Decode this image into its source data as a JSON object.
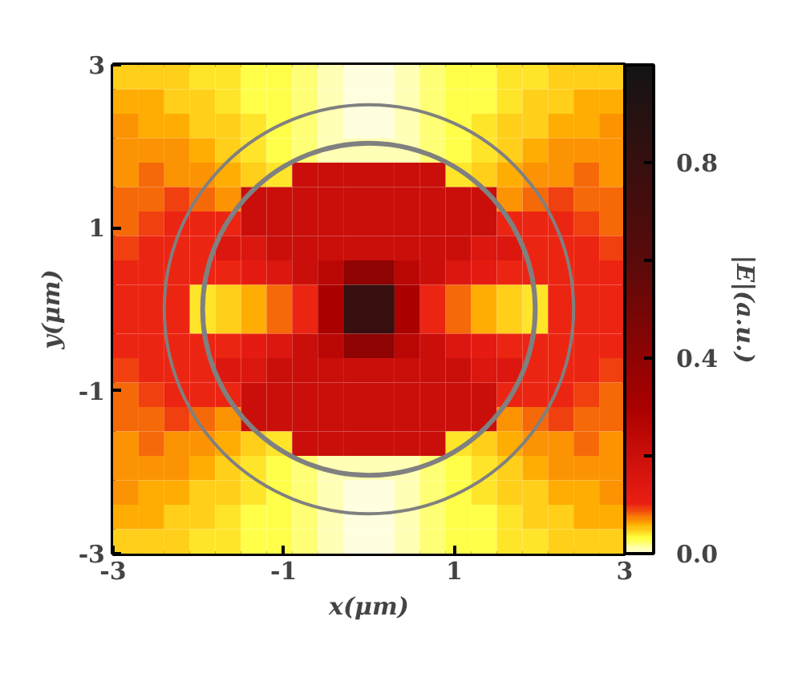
{
  "chart_data": {
    "type": "heatmap",
    "xlabel": "x(μm)",
    "ylabel": "y(μm)",
    "clabel": "|E|(a.u.)",
    "x": [
      -2.85,
      -2.55,
      -2.25,
      -1.95,
      -1.65,
      -1.35,
      -1.05,
      -0.75,
      -0.45,
      -0.15,
      0.15,
      0.45,
      0.75,
      1.05,
      1.35,
      1.65,
      1.95,
      2.25,
      2.55,
      2.85
    ],
    "y": [
      2.85,
      2.55,
      2.25,
      1.95,
      1.65,
      1.35,
      1.05,
      0.75,
      0.45,
      0.15,
      -0.15,
      -0.45,
      -0.75,
      -1.05,
      -1.35,
      -1.65,
      -1.95,
      -2.25,
      -2.55,
      -2.85
    ],
    "cells": [
      [
        0.05,
        0.05,
        0.05,
        0.04,
        0.04,
        0.03,
        0.03,
        0.02,
        0.01,
        0.0,
        0.0,
        0.01,
        0.02,
        0.03,
        0.03,
        0.04,
        0.04,
        0.05,
        0.05,
        0.05
      ],
      [
        0.06,
        0.06,
        0.05,
        0.05,
        0.04,
        0.03,
        0.03,
        0.02,
        0.01,
        0.0,
        0.0,
        0.01,
        0.02,
        0.03,
        0.03,
        0.04,
        0.05,
        0.05,
        0.06,
        0.06
      ],
      [
        0.07,
        0.06,
        0.06,
        0.05,
        0.05,
        0.04,
        0.03,
        0.02,
        0.01,
        0.0,
        0.0,
        0.01,
        0.02,
        0.03,
        0.04,
        0.05,
        0.05,
        0.06,
        0.06,
        0.07
      ],
      [
        0.07,
        0.07,
        0.07,
        0.06,
        0.05,
        0.04,
        0.03,
        0.02,
        0.01,
        0.01,
        0.01,
        0.01,
        0.02,
        0.03,
        0.04,
        0.05,
        0.06,
        0.07,
        0.07,
        0.07
      ],
      [
        0.07,
        0.08,
        0.07,
        0.07,
        0.06,
        0.05,
        0.04,
        0.2,
        0.2,
        0.2,
        0.2,
        0.2,
        0.2,
        0.04,
        0.05,
        0.06,
        0.07,
        0.07,
        0.08,
        0.07
      ],
      [
        0.08,
        0.08,
        0.09,
        0.08,
        0.07,
        0.2,
        0.2,
        0.2,
        0.2,
        0.2,
        0.2,
        0.2,
        0.2,
        0.2,
        0.2,
        0.07,
        0.08,
        0.09,
        0.08,
        0.08
      ],
      [
        0.08,
        0.09,
        0.1,
        0.1,
        0.1,
        0.2,
        0.2,
        0.2,
        0.2,
        0.2,
        0.2,
        0.2,
        0.2,
        0.2,
        0.2,
        0.1,
        0.1,
        0.1,
        0.09,
        0.08
      ],
      [
        0.09,
        0.1,
        0.1,
        0.1,
        0.15,
        0.15,
        0.2,
        0.2,
        0.2,
        0.2,
        0.2,
        0.2,
        0.2,
        0.2,
        0.15,
        0.15,
        0.1,
        0.1,
        0.1,
        0.09
      ],
      [
        0.1,
        0.1,
        0.1,
        0.1,
        0.1,
        0.12,
        0.15,
        0.2,
        0.25,
        0.4,
        0.4,
        0.25,
        0.2,
        0.15,
        0.12,
        0.1,
        0.1,
        0.1,
        0.1,
        0.1
      ],
      [
        0.1,
        0.1,
        0.1,
        0.04,
        0.05,
        0.06,
        0.08,
        0.1,
        0.3,
        0.8,
        0.8,
        0.3,
        0.1,
        0.08,
        0.06,
        0.05,
        0.04,
        0.1,
        0.1,
        0.1
      ],
      [
        0.1,
        0.1,
        0.1,
        0.04,
        0.05,
        0.06,
        0.08,
        0.1,
        0.3,
        0.8,
        0.8,
        0.3,
        0.1,
        0.08,
        0.06,
        0.05,
        0.04,
        0.1,
        0.1,
        0.1
      ],
      [
        0.1,
        0.1,
        0.1,
        0.1,
        0.1,
        0.12,
        0.15,
        0.2,
        0.25,
        0.4,
        0.4,
        0.25,
        0.2,
        0.15,
        0.12,
        0.1,
        0.1,
        0.1,
        0.1,
        0.1
      ],
      [
        0.09,
        0.1,
        0.1,
        0.1,
        0.15,
        0.15,
        0.2,
        0.2,
        0.2,
        0.2,
        0.2,
        0.2,
        0.2,
        0.2,
        0.15,
        0.15,
        0.1,
        0.1,
        0.1,
        0.09
      ],
      [
        0.08,
        0.09,
        0.1,
        0.1,
        0.1,
        0.2,
        0.2,
        0.2,
        0.2,
        0.2,
        0.2,
        0.2,
        0.2,
        0.2,
        0.2,
        0.1,
        0.1,
        0.1,
        0.09,
        0.08
      ],
      [
        0.08,
        0.08,
        0.09,
        0.08,
        0.07,
        0.2,
        0.2,
        0.2,
        0.2,
        0.2,
        0.2,
        0.2,
        0.2,
        0.2,
        0.2,
        0.07,
        0.08,
        0.09,
        0.08,
        0.08
      ],
      [
        0.07,
        0.08,
        0.07,
        0.07,
        0.06,
        0.05,
        0.04,
        0.2,
        0.2,
        0.2,
        0.2,
        0.2,
        0.2,
        0.04,
        0.05,
        0.06,
        0.07,
        0.07,
        0.08,
        0.07
      ],
      [
        0.07,
        0.07,
        0.07,
        0.06,
        0.05,
        0.04,
        0.03,
        0.02,
        0.01,
        0.01,
        0.01,
        0.01,
        0.02,
        0.03,
        0.04,
        0.05,
        0.06,
        0.07,
        0.07,
        0.07
      ],
      [
        0.07,
        0.06,
        0.06,
        0.05,
        0.05,
        0.04,
        0.03,
        0.02,
        0.01,
        0.0,
        0.0,
        0.01,
        0.02,
        0.03,
        0.04,
        0.05,
        0.05,
        0.06,
        0.06,
        0.07
      ],
      [
        0.06,
        0.06,
        0.05,
        0.05,
        0.04,
        0.03,
        0.03,
        0.02,
        0.01,
        0.0,
        0.0,
        0.01,
        0.02,
        0.03,
        0.03,
        0.04,
        0.05,
        0.05,
        0.06,
        0.06
      ],
      [
        0.05,
        0.05,
        0.05,
        0.04,
        0.04,
        0.03,
        0.03,
        0.02,
        0.01,
        0.0,
        0.0,
        0.01,
        0.02,
        0.03,
        0.03,
        0.04,
        0.04,
        0.05,
        0.05,
        0.05
      ]
    ],
    "xlim": [
      -3,
      3
    ],
    "ylim": [
      -3,
      3
    ],
    "xticks": [
      -3,
      -1,
      1,
      3
    ],
    "yticks": [
      -3,
      -1,
      1,
      3
    ],
    "clim": [
      0,
      1
    ],
    "cticks": [
      {
        "value": 0,
        "label": "0.0"
      },
      {
        "value": 0.2,
        "label": null
      },
      0.4,
      {
        "value": 0.6,
        "label": null
      },
      0.8
    ],
    "grid": false
  }
}
